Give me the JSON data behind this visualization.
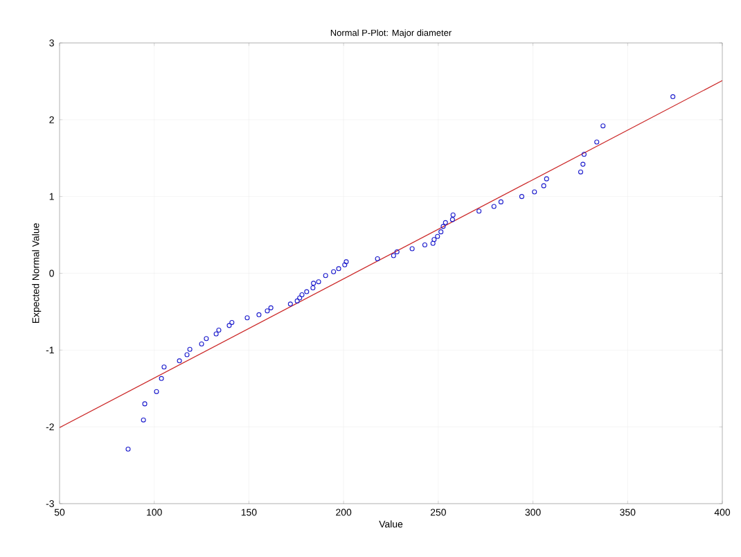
{
  "chart_data": {
    "type": "scatter",
    "title": "Normal P-Plot: Major diameter",
    "xlabel": "Value",
    "ylabel": "Expected Normal Value",
    "xlim": [
      50,
      400
    ],
    "ylim": [
      -3,
      3
    ],
    "xticks": [
      50,
      100,
      150,
      200,
      250,
      300,
      350,
      400
    ],
    "yticks": [
      -3,
      -2,
      -1,
      0,
      1,
      2,
      3
    ],
    "grid": true,
    "series": [
      {
        "color": "#1a1acc",
        "marker": "circle",
        "x": [
          86.2,
          94.3,
          95.0,
          101.2,
          103.8,
          105.2,
          113.3,
          117.3,
          118.8,
          125.0,
          127.5,
          132.7,
          134.1,
          139.6,
          141.0,
          149.1,
          155.3,
          159.7,
          161.6,
          171.9,
          175.5,
          176.8,
          178.0,
          180.5,
          183.8,
          184.1,
          186.8,
          190.5,
          194.7,
          197.4,
          200.6,
          201.4,
          217.9,
          226.4,
          228.2,
          236.2,
          242.9,
          247.2,
          247.8,
          249.6,
          251.4,
          252.6,
          253.8,
          257.5,
          257.8,
          271.5,
          279.4,
          283.1,
          294.1,
          300.8,
          305.7,
          307.2,
          325.2,
          326.4,
          327.0,
          333.7,
          337.0,
          373.9
        ],
        "values": [
          -2.29,
          -1.91,
          -1.7,
          -1.54,
          -1.37,
          -1.22,
          -1.14,
          -1.06,
          -0.99,
          -0.92,
          -0.85,
          -0.79,
          -0.74,
          -0.68,
          -0.64,
          -0.58,
          -0.54,
          -0.49,
          -0.45,
          -0.4,
          -0.36,
          -0.32,
          -0.28,
          -0.24,
          -0.19,
          -0.13,
          -0.11,
          -0.03,
          0.02,
          0.06,
          0.11,
          0.15,
          0.19,
          0.23,
          0.28,
          0.32,
          0.37,
          0.39,
          0.44,
          0.48,
          0.54,
          0.61,
          0.66,
          0.7,
          0.76,
          0.81,
          0.87,
          0.93,
          1.0,
          1.06,
          1.14,
          1.23,
          1.32,
          1.42,
          1.55,
          1.71,
          1.92,
          2.3
        ]
      },
      {
        "type": "line",
        "color": "#cc2a2a",
        "marker": "none",
        "line_style": "solid",
        "x": [
          50,
          400
        ],
        "values": [
          -2.01,
          2.51
        ]
      }
    ]
  }
}
